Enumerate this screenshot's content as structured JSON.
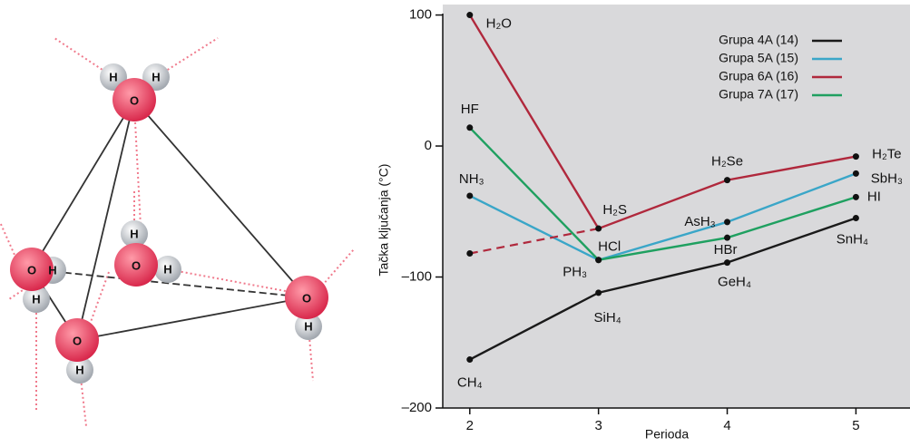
{
  "diagram": {
    "molecules": [
      {
        "o": "O",
        "h": [
          "H",
          "H"
        ]
      },
      {
        "o": "O",
        "h": [
          "H",
          "H"
        ]
      },
      {
        "o": "O",
        "h": [
          "H",
          "H"
        ]
      },
      {
        "o": "O",
        "h": [
          "H"
        ]
      },
      {
        "o": "O",
        "h": [
          "H"
        ]
      }
    ]
  },
  "chart_data": {
    "type": "line",
    "x": [
      2,
      3,
      4,
      5
    ],
    "xlim": [
      1.79,
      5.42
    ],
    "xticks": [
      2,
      3,
      4,
      5
    ],
    "ylim": [
      -200,
      108
    ],
    "yticks": [
      100,
      0,
      {
        "value": -100,
        "label": "–100"
      },
      {
        "value": -200,
        "label": "–200"
      }
    ],
    "ylabel": "Tačka ključanja (°C)",
    "xlabel": "Perioda",
    "legend": "upper right",
    "series": [
      {
        "name": "Grupa 4A (14)",
        "color": "#1a1a1a",
        "values": [
          -163,
          -112,
          -89,
          -55
        ],
        "point_labels": [
          "CH₄",
          "SiH₄",
          "GeH₄",
          "SnH₄"
        ]
      },
      {
        "name": "Grupa 5A (15)",
        "color": "#3aa6c8",
        "values": [
          -38,
          -87,
          -58,
          -21
        ],
        "point_labels": [
          "NH₃",
          "PH₃",
          "AsH₃",
          "SbH₃"
        ]
      },
      {
        "name": "Grupa 6A (16)",
        "color": "#b0283c",
        "values": [
          100,
          -63,
          -26,
          -8
        ],
        "point_labels": [
          "H₂O",
          "H₂S",
          "H₂Se",
          "H₂Te"
        ],
        "dashed_start": -82
      },
      {
        "name": "Grupa 7A (17)",
        "color": "#1fa060",
        "values": [
          14,
          -87,
          -70,
          -39
        ],
        "point_labels": [
          "HF",
          "HCl",
          "HBr",
          "HI"
        ]
      }
    ]
  }
}
